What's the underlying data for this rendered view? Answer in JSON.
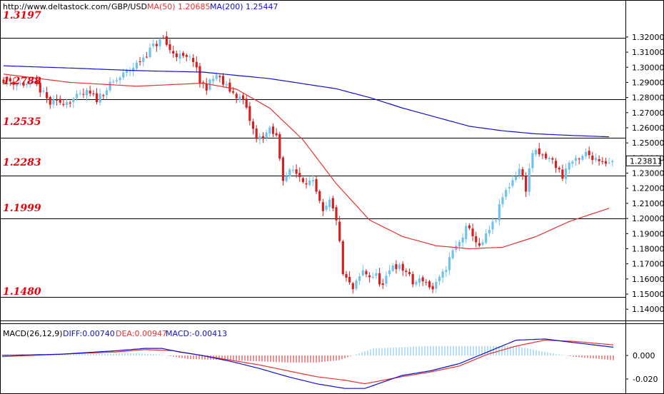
{
  "header": {
    "url": "http://www.deltastock.com/",
    "symbol": "GBP/USD",
    "ma50_label": "MA(50)",
    "ma50_value": "1.20685",
    "ma200_label": "MA(200)",
    "ma200_value": "1.25447"
  },
  "levels": [
    "1.3197",
    "1.2788",
    "1.2535",
    "1.2283",
    "1.1999",
    "1.1480"
  ],
  "current_price": "1.23811",
  "macd_header": {
    "label": "MACD(26,12,9)",
    "diff": "DIFF:0.00740",
    "dea": "DEA:0.00947",
    "macd": "MACD:-0.00413"
  },
  "colors": {
    "up": "#6fc2ee",
    "down": "#d42020",
    "ma50": "#e83030",
    "ma200": "#1010d0",
    "level_text": "#e8000b",
    "diff_line": "#1010d0",
    "dea_line": "#e83030"
  },
  "chart_data": [
    {
      "type": "candlestick",
      "title": "GBP/USD",
      "ylim": [
        1.1335,
        1.336
      ],
      "yticks": [
        "1.32000",
        "1.31000",
        "1.30000",
        "1.29000",
        "1.28000",
        "1.27000",
        "1.26000",
        "1.25000",
        "1.24000",
        "1.23000",
        "1.22000",
        "1.21000",
        "1.20000",
        "1.19000",
        "1.18000",
        "1.17000",
        "1.16000",
        "1.15000",
        "1.14000"
      ],
      "horizontal_levels": [
        1.3197,
        1.2788,
        1.2535,
        1.2283,
        1.1999,
        1.148
      ],
      "last_price": 1.23811,
      "close_anchors": [
        [
          0,
          1.292
        ],
        [
          5,
          1.289
        ],
        [
          10,
          1.288
        ],
        [
          14,
          1.276
        ],
        [
          20,
          1.278
        ],
        [
          25,
          1.283
        ],
        [
          28,
          1.279
        ],
        [
          32,
          1.288
        ],
        [
          36,
          1.295
        ],
        [
          40,
          1.302
        ],
        [
          45,
          1.314
        ],
        [
          48,
          1.319
        ],
        [
          50,
          1.311
        ],
        [
          54,
          1.306
        ],
        [
          57,
          1.305
        ],
        [
          59,
          1.29
        ],
        [
          61,
          1.287
        ],
        [
          64,
          1.295
        ],
        [
          66,
          1.289
        ],
        [
          69,
          1.283
        ],
        [
          72,
          1.278
        ],
        [
          74,
          1.265
        ],
        [
          76,
          1.252
        ],
        [
          80,
          1.258
        ],
        [
          82,
          1.254
        ],
        [
          84,
          1.227
        ],
        [
          87,
          1.232
        ],
        [
          90,
          1.226
        ],
        [
          93,
          1.223
        ],
        [
          96,
          1.203
        ],
        [
          98,
          1.211
        ],
        [
          100,
          1.2
        ],
        [
          101,
          1.183
        ],
        [
          102,
          1.163
        ],
        [
          105,
          1.153
        ],
        [
          108,
          1.165
        ],
        [
          110,
          1.162
        ],
        [
          112,
          1.162
        ],
        [
          114,
          1.155
        ],
        [
          117,
          1.17
        ],
        [
          121,
          1.165
        ],
        [
          123,
          1.157
        ],
        [
          126,
          1.16
        ],
        [
          129,
          1.153
        ],
        [
          132,
          1.163
        ],
        [
          135,
          1.178
        ],
        [
          137,
          1.184
        ],
        [
          139,
          1.193
        ],
        [
          141,
          1.19
        ],
        [
          143,
          1.18
        ],
        [
          145,
          1.188
        ],
        [
          148,
          1.2
        ],
        [
          150,
          1.214
        ],
        [
          152,
          1.222
        ],
        [
          155,
          1.233
        ],
        [
          157,
          1.22
        ],
        [
          159,
          1.244
        ],
        [
          161,
          1.242
        ],
        [
          165,
          1.238
        ],
        [
          168,
          1.228
        ],
        [
          170,
          1.237
        ],
        [
          173,
          1.238
        ],
        [
          175,
          1.243
        ],
        [
          178,
          1.24
        ],
        [
          181,
          1.238
        ],
        [
          183,
          1.23811
        ]
      ],
      "ma50": [
        [
          0,
          1.2955
        ],
        [
          20,
          1.29
        ],
        [
          40,
          1.2875
        ],
        [
          60,
          1.2895
        ],
        [
          70,
          1.2855
        ],
        [
          80,
          1.273
        ],
        [
          90,
          1.252
        ],
        [
          100,
          1.223
        ],
        [
          110,
          1.199
        ],
        [
          120,
          1.188
        ],
        [
          130,
          1.182
        ],
        [
          140,
          1.18
        ],
        [
          150,
          1.181
        ],
        [
          160,
          1.188
        ],
        [
          170,
          1.198
        ],
        [
          182,
          1.2068
        ]
      ],
      "ma200": [
        [
          0,
          1.301
        ],
        [
          20,
          1.2995
        ],
        [
          40,
          1.2978
        ],
        [
          60,
          1.2968
        ],
        [
          80,
          1.2925
        ],
        [
          100,
          1.2858
        ],
        [
          110,
          1.28
        ],
        [
          120,
          1.273
        ],
        [
          130,
          1.267
        ],
        [
          140,
          1.261
        ],
        [
          150,
          1.258
        ],
        [
          160,
          1.256
        ],
        [
          170,
          1.255
        ],
        [
          182,
          1.254
        ]
      ]
    },
    {
      "type": "macd",
      "title": "MACD(26,12,9)",
      "ylim": [
        -0.029,
        0.026
      ],
      "yticks": [
        "0.000",
        "-0.020"
      ],
      "diff": [
        [
          0,
          0.0
        ],
        [
          20,
          0.001
        ],
        [
          40,
          0.004
        ],
        [
          50,
          0.006
        ],
        [
          56,
          0.006
        ],
        [
          62,
          0.003
        ],
        [
          70,
          0.0
        ],
        [
          80,
          -0.005
        ],
        [
          90,
          -0.011
        ],
        [
          100,
          -0.018
        ],
        [
          110,
          -0.024
        ],
        [
          120,
          -0.028
        ],
        [
          127,
          -0.028
        ],
        [
          140,
          -0.017
        ],
        [
          150,
          -0.013
        ],
        [
          160,
          -0.007
        ],
        [
          170,
          0.003
        ],
        [
          180,
          0.013
        ],
        [
          190,
          0.014
        ],
        [
          200,
          0.011
        ],
        [
          214,
          0.007
        ]
      ],
      "dea": [
        [
          0,
          -0.001
        ],
        [
          20,
          0.001
        ],
        [
          40,
          0.003
        ],
        [
          50,
          0.005
        ],
        [
          60,
          0.004
        ],
        [
          70,
          0.0
        ],
        [
          80,
          -0.004
        ],
        [
          90,
          -0.008
        ],
        [
          100,
          -0.013
        ],
        [
          110,
          -0.018
        ],
        [
          120,
          -0.021
        ],
        [
          127,
          -0.024
        ],
        [
          140,
          -0.018
        ],
        [
          150,
          -0.014
        ],
        [
          160,
          -0.009
        ],
        [
          170,
          0.001
        ],
        [
          180,
          0.008
        ],
        [
          190,
          0.013
        ],
        [
          200,
          0.012
        ],
        [
          214,
          0.009
        ]
      ],
      "hist": [
        [
          0,
          0.001
        ],
        [
          25,
          0.001
        ],
        [
          45,
          0.002
        ],
        [
          55,
          0.001
        ],
        [
          65,
          -0.003
        ],
        [
          80,
          -0.004
        ],
        [
          100,
          -0.006
        ],
        [
          110,
          -0.006
        ],
        [
          118,
          -0.004
        ],
        [
          130,
          0.006
        ],
        [
          150,
          0.008
        ],
        [
          165,
          0.008
        ],
        [
          180,
          0.008
        ],
        [
          190,
          0.003
        ],
        [
          200,
          -0.001
        ],
        [
          214,
          -0.004
        ]
      ]
    }
  ]
}
